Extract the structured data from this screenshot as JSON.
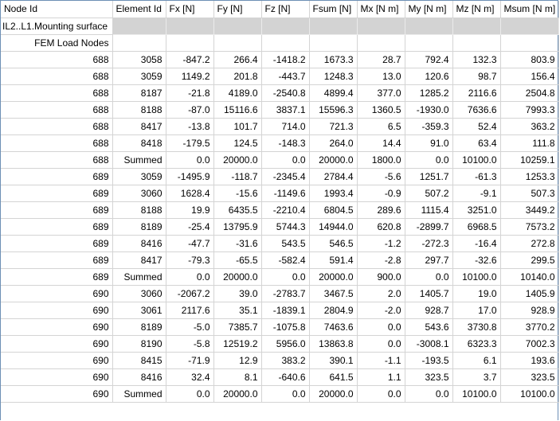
{
  "columns": [
    "Node Id",
    "Element Id",
    "Fx [N]",
    "Fy [N]",
    "Fz [N]",
    "Fsum [N]",
    "Mx [N m]",
    "My [N m]",
    "Mz [N m]",
    "Msum [N m]"
  ],
  "group_label": "IL2..L1.Mounting surface",
  "subgroup_label": "FEM Load Nodes",
  "rows": [
    [
      "688",
      "3058",
      "-847.2",
      "266.4",
      "-1418.2",
      "1673.3",
      "28.7",
      "792.4",
      "132.3",
      "803.9"
    ],
    [
      "688",
      "3059",
      "1149.2",
      "201.8",
      "-443.7",
      "1248.3",
      "13.0",
      "120.6",
      "98.7",
      "156.4"
    ],
    [
      "688",
      "8187",
      "-21.8",
      "4189.0",
      "-2540.8",
      "4899.4",
      "377.0",
      "1285.2",
      "2116.6",
      "2504.8"
    ],
    [
      "688",
      "8188",
      "-87.0",
      "15116.6",
      "3837.1",
      "15596.3",
      "1360.5",
      "-1930.0",
      "7636.6",
      "7993.3"
    ],
    [
      "688",
      "8417",
      "-13.8",
      "101.7",
      "714.0",
      "721.3",
      "6.5",
      "-359.3",
      "52.4",
      "363.2"
    ],
    [
      "688",
      "8418",
      "-179.5",
      "124.5",
      "-148.3",
      "264.0",
      "14.4",
      "91.0",
      "63.4",
      "111.8"
    ],
    [
      "688",
      "Summed",
      "0.0",
      "20000.0",
      "0.0",
      "20000.0",
      "1800.0",
      "0.0",
      "10100.0",
      "10259.1"
    ],
    [
      "689",
      "3059",
      "-1495.9",
      "-118.7",
      "-2345.4",
      "2784.4",
      "-5.6",
      "1251.7",
      "-61.3",
      "1253.3"
    ],
    [
      "689",
      "3060",
      "1628.4",
      "-15.6",
      "-1149.6",
      "1993.4",
      "-0.9",
      "507.2",
      "-9.1",
      "507.3"
    ],
    [
      "689",
      "8188",
      "19.9",
      "6435.5",
      "-2210.4",
      "6804.5",
      "289.6",
      "1115.4",
      "3251.0",
      "3449.2"
    ],
    [
      "689",
      "8189",
      "-25.4",
      "13795.9",
      "5744.3",
      "14944.0",
      "620.8",
      "-2899.7",
      "6968.5",
      "7573.2"
    ],
    [
      "689",
      "8416",
      "-47.7",
      "-31.6",
      "543.5",
      "546.5",
      "-1.2",
      "-272.3",
      "-16.4",
      "272.8"
    ],
    [
      "689",
      "8417",
      "-79.3",
      "-65.5",
      "-582.4",
      "591.4",
      "-2.8",
      "297.7",
      "-32.6",
      "299.5"
    ],
    [
      "689",
      "Summed",
      "0.0",
      "20000.0",
      "0.0",
      "20000.0",
      "900.0",
      "0.0",
      "10100.0",
      "10140.0"
    ],
    [
      "690",
      "3060",
      "-2067.2",
      "39.0",
      "-2783.7",
      "3467.5",
      "2.0",
      "1405.7",
      "19.0",
      "1405.9"
    ],
    [
      "690",
      "3061",
      "2117.6",
      "35.1",
      "-1839.1",
      "2804.9",
      "-2.0",
      "928.7",
      "17.0",
      "928.9"
    ],
    [
      "690",
      "8189",
      "-5.0",
      "7385.7",
      "-1075.8",
      "7463.6",
      "0.0",
      "543.6",
      "3730.8",
      "3770.2"
    ],
    [
      "690",
      "8190",
      "-5.8",
      "12519.2",
      "5956.0",
      "13863.8",
      "0.0",
      "-3008.1",
      "6323.3",
      "7002.3"
    ],
    [
      "690",
      "8415",
      "-71.9",
      "12.9",
      "383.2",
      "390.1",
      "-1.1",
      "-193.5",
      "6.1",
      "193.6"
    ],
    [
      "690",
      "8416",
      "32.4",
      "8.1",
      "-640.6",
      "641.5",
      "1.1",
      "323.5",
      "3.7",
      "323.5"
    ],
    [
      "690",
      "Summed",
      "0.0",
      "20000.0",
      "0.0",
      "20000.0",
      "0.0",
      "0.0",
      "10100.0",
      "10100.0"
    ]
  ]
}
